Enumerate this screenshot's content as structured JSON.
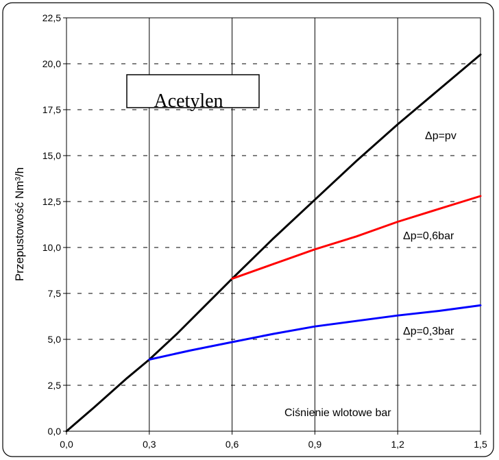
{
  "chart_data": {
    "type": "line",
    "title": "Acetylen",
    "xlabel": "Ciśnienie wlotowe bar",
    "ylabel": "Przepustowość Nm³/h",
    "xlim": [
      0,
      1.5
    ],
    "ylim": [
      0,
      22.5
    ],
    "x_ticks": [
      "0,0",
      "0,3",
      "0,6",
      "0,9",
      "1,2",
      "1,5"
    ],
    "y_ticks": [
      "0,0",
      "2,5",
      "5,0",
      "7,5",
      "10,0",
      "12,5",
      "15,0",
      "17,5",
      "20,0",
      "22,5"
    ],
    "grid": {
      "vertical": "solid",
      "horizontal": "dashed"
    },
    "series": [
      {
        "name": "Δp=pv",
        "color": "#000000",
        "x": [
          0,
          0.1,
          0.22,
          0.3,
          0.4,
          0.5,
          0.6,
          0.75,
          0.9,
          1.05,
          1.2,
          1.35,
          1.5
        ],
        "y": [
          0,
          1.3,
          2.9,
          3.9,
          5.3,
          6.8,
          8.3,
          10.5,
          12.6,
          14.7,
          16.7,
          18.6,
          20.5
        ]
      },
      {
        "name": "Δp=0,6bar",
        "color": "#ff0000",
        "x": [
          0.6,
          0.75,
          0.9,
          1.05,
          1.2,
          1.35,
          1.5
        ],
        "y": [
          8.3,
          9.1,
          9.9,
          10.6,
          11.4,
          12.1,
          12.8
        ]
      },
      {
        "name": "Δp=0,3bar",
        "color": "#0000ff",
        "x": [
          0.3,
          0.45,
          0.6,
          0.75,
          0.9,
          1.05,
          1.2,
          1.35,
          1.5
        ],
        "y": [
          3.9,
          4.4,
          4.85,
          5.3,
          5.7,
          6.0,
          6.3,
          6.55,
          6.85
        ]
      }
    ]
  }
}
